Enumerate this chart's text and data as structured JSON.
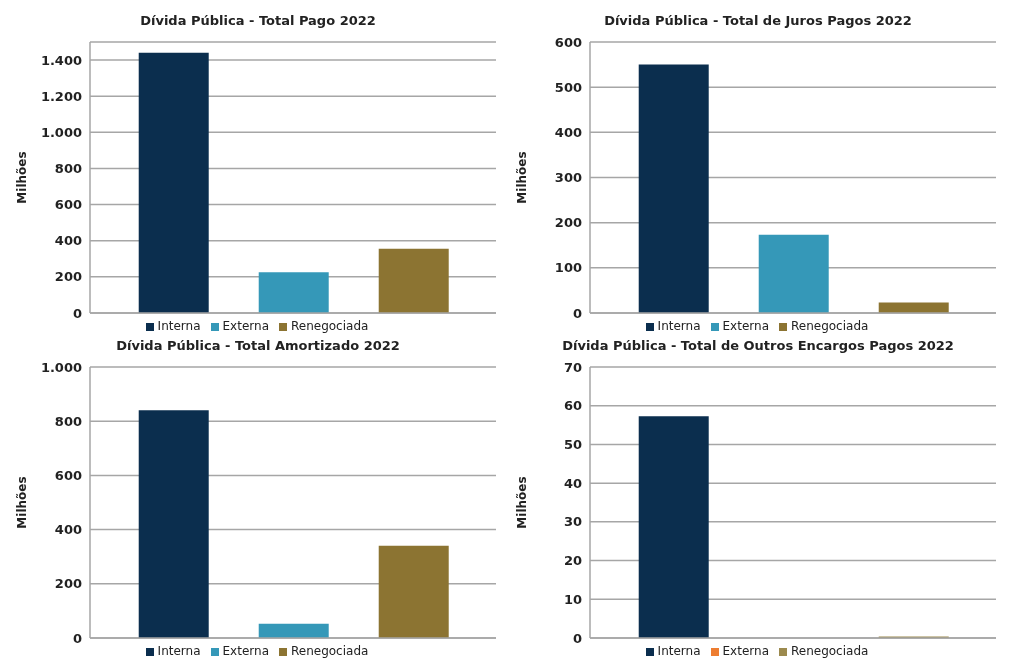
{
  "chart_data": [
    {
      "type": "bar",
      "title": "Dívida Pública - Total Pago 2022",
      "ylabel": "Milhões",
      "categories": [
        null
      ],
      "series": [
        {
          "name": "Interna",
          "color": "#0b2e4e",
          "values": [
            1440
          ]
        },
        {
          "name": "Externa",
          "color": "#3598b8",
          "values": [
            225
          ]
        },
        {
          "name": "Renegociada",
          "color": "#8c7432",
          "values": [
            355
          ]
        }
      ],
      "ylim": [
        0,
        1500
      ],
      "yticks": [
        0,
        {
          "value": 200,
          "label": "200"
        },
        {
          "value": 400,
          "label": "400"
        },
        {
          "value": 600,
          "label": "600"
        },
        {
          "value": 800,
          "label": "800"
        },
        {
          "value": 1000,
          "label": "1.000"
        },
        {
          "value": 1200,
          "label": "1.200"
        },
        {
          "value": 1400,
          "label": "1.400"
        }
      ],
      "grid": "y",
      "legend": "bottom",
      "tick_labels": "y"
    },
    {
      "type": "bar",
      "title": "Dívida Pública - Total de Juros Pagos 2022",
      "ylabel": "Milhões",
      "categories": [
        null
      ],
      "series": [
        {
          "name": "Interna",
          "color": "#0b2e4e",
          "values": [
            550
          ]
        },
        {
          "name": "Externa",
          "color": "#3598b8",
          "values": [
            173
          ]
        },
        {
          "name": "Renegociada",
          "color": "#8c7432",
          "values": [
            23
          ]
        }
      ],
      "ylim": [
        0,
        600
      ],
      "yticks": [
        0,
        100,
        200,
        300,
        400,
        500,
        600
      ],
      "grid": "y",
      "legend": "bottom",
      "tick_labels": "y"
    },
    {
      "type": "bar",
      "title": "Dívida Pública - Total Amortizado 2022",
      "ylabel": "Milhões",
      "categories": [
        null
      ],
      "series": [
        {
          "name": "Interna",
          "color": "#0b2e4e",
          "values": [
            840
          ]
        },
        {
          "name": "Externa",
          "color": "#3598b8",
          "values": [
            53
          ]
        },
        {
          "name": "Renegociada",
          "color": "#8c7432",
          "values": [
            340
          ]
        }
      ],
      "ylim": [
        0,
        1000
      ],
      "yticks": [
        0,
        200,
        400,
        600,
        800,
        {
          "value": 1000,
          "label": "1.000"
        }
      ],
      "grid": "y",
      "legend": "bottom",
      "tick_labels": "y"
    },
    {
      "type": "bar",
      "title": "Dívida Pública - Total de Outros Encargos Pagos 2022",
      "ylabel": "Milhões",
      "categories": [
        null
      ],
      "series": [
        {
          "name": "Interna",
          "color": "#0b2e4e",
          "values": [
            57.3
          ]
        },
        {
          "name": "Externa",
          "color": "#ed7d31",
          "values": [
            0
          ]
        },
        {
          "name": "Renegociada",
          "color": "#9c8a4e",
          "values": [
            0.4
          ]
        }
      ],
      "ylim": [
        0,
        70
      ],
      "yticks": [
        0,
        10,
        20,
        30,
        40,
        50,
        60,
        70
      ],
      "grid": "y",
      "legend": "bottom",
      "tick_labels": "y"
    }
  ]
}
